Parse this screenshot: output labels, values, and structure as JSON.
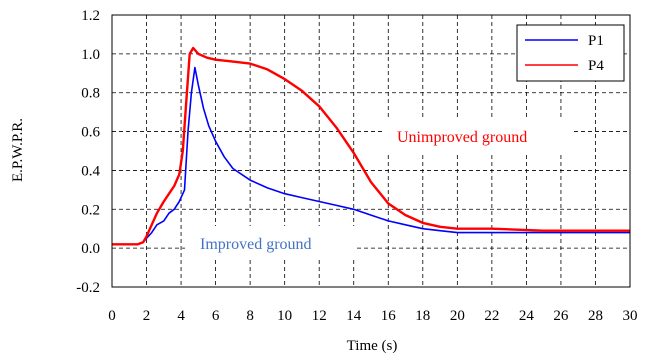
{
  "chart_data": {
    "type": "line",
    "xlabel": "Time (s)",
    "ylabel": "E.P.W.P.R.",
    "xlim": [
      0,
      30
    ],
    "ylim": [
      -0.2,
      1.2
    ],
    "xticks": [
      0,
      2,
      4,
      6,
      8,
      10,
      12,
      14,
      16,
      18,
      20,
      22,
      24,
      26,
      28,
      30
    ],
    "yticks": [
      -0.2,
      0.0,
      0.2,
      0.4,
      0.6,
      0.8,
      1.0,
      1.2
    ],
    "ytick_labels": [
      "-0.2",
      "0.0",
      "0.2",
      "0.4",
      "0.6",
      "0.8",
      "1.0",
      "1.2"
    ],
    "grid": "dashed",
    "legend": {
      "placement": "top-right"
    },
    "series": [
      {
        "name": "P1",
        "color": "#0000ff",
        "x": [
          0,
          1,
          1.5,
          1.8,
          2.0,
          2.3,
          2.6,
          3.0,
          3.3,
          3.6,
          3.9,
          4.2,
          4.4,
          4.6,
          4.8,
          5.0,
          5.3,
          5.6,
          6.0,
          6.5,
          7.0,
          8.0,
          9.0,
          10.0,
          11.0,
          12.0,
          13.0,
          14.0,
          15.0,
          16.0,
          17.0,
          18.0,
          19.0,
          20.0,
          22.0,
          25.0,
          28.0,
          30.0
        ],
        "y": [
          0.02,
          0.02,
          0.02,
          0.03,
          0.05,
          0.08,
          0.12,
          0.14,
          0.18,
          0.2,
          0.24,
          0.3,
          0.6,
          0.8,
          0.93,
          0.84,
          0.72,
          0.63,
          0.55,
          0.47,
          0.41,
          0.35,
          0.31,
          0.28,
          0.26,
          0.24,
          0.22,
          0.2,
          0.17,
          0.14,
          0.12,
          0.1,
          0.09,
          0.08,
          0.08,
          0.08,
          0.08,
          0.08
        ]
      },
      {
        "name": "P4",
        "color": "#ff0000",
        "x": [
          0,
          1,
          1.5,
          1.8,
          2.0,
          2.3,
          2.6,
          3.0,
          3.3,
          3.6,
          3.9,
          4.1,
          4.3,
          4.5,
          4.7,
          5.0,
          5.5,
          6.0,
          7.0,
          8.0,
          9.0,
          10.0,
          11.0,
          12.0,
          13.0,
          14.0,
          15.0,
          16.0,
          17.0,
          18.0,
          19.0,
          20.0,
          22.0,
          25.0,
          28.0,
          30.0
        ],
        "y": [
          0.02,
          0.02,
          0.02,
          0.03,
          0.06,
          0.12,
          0.18,
          0.24,
          0.28,
          0.32,
          0.38,
          0.5,
          0.75,
          1.0,
          1.03,
          1.0,
          0.98,
          0.97,
          0.96,
          0.95,
          0.92,
          0.87,
          0.81,
          0.73,
          0.62,
          0.49,
          0.34,
          0.23,
          0.17,
          0.13,
          0.11,
          0.1,
          0.1,
          0.09,
          0.09,
          0.09
        ]
      }
    ],
    "annotations": [
      {
        "text": "Unimproved ground",
        "color": "#ff0000"
      },
      {
        "text": "Improved ground",
        "color": "#4472c4"
      }
    ]
  }
}
